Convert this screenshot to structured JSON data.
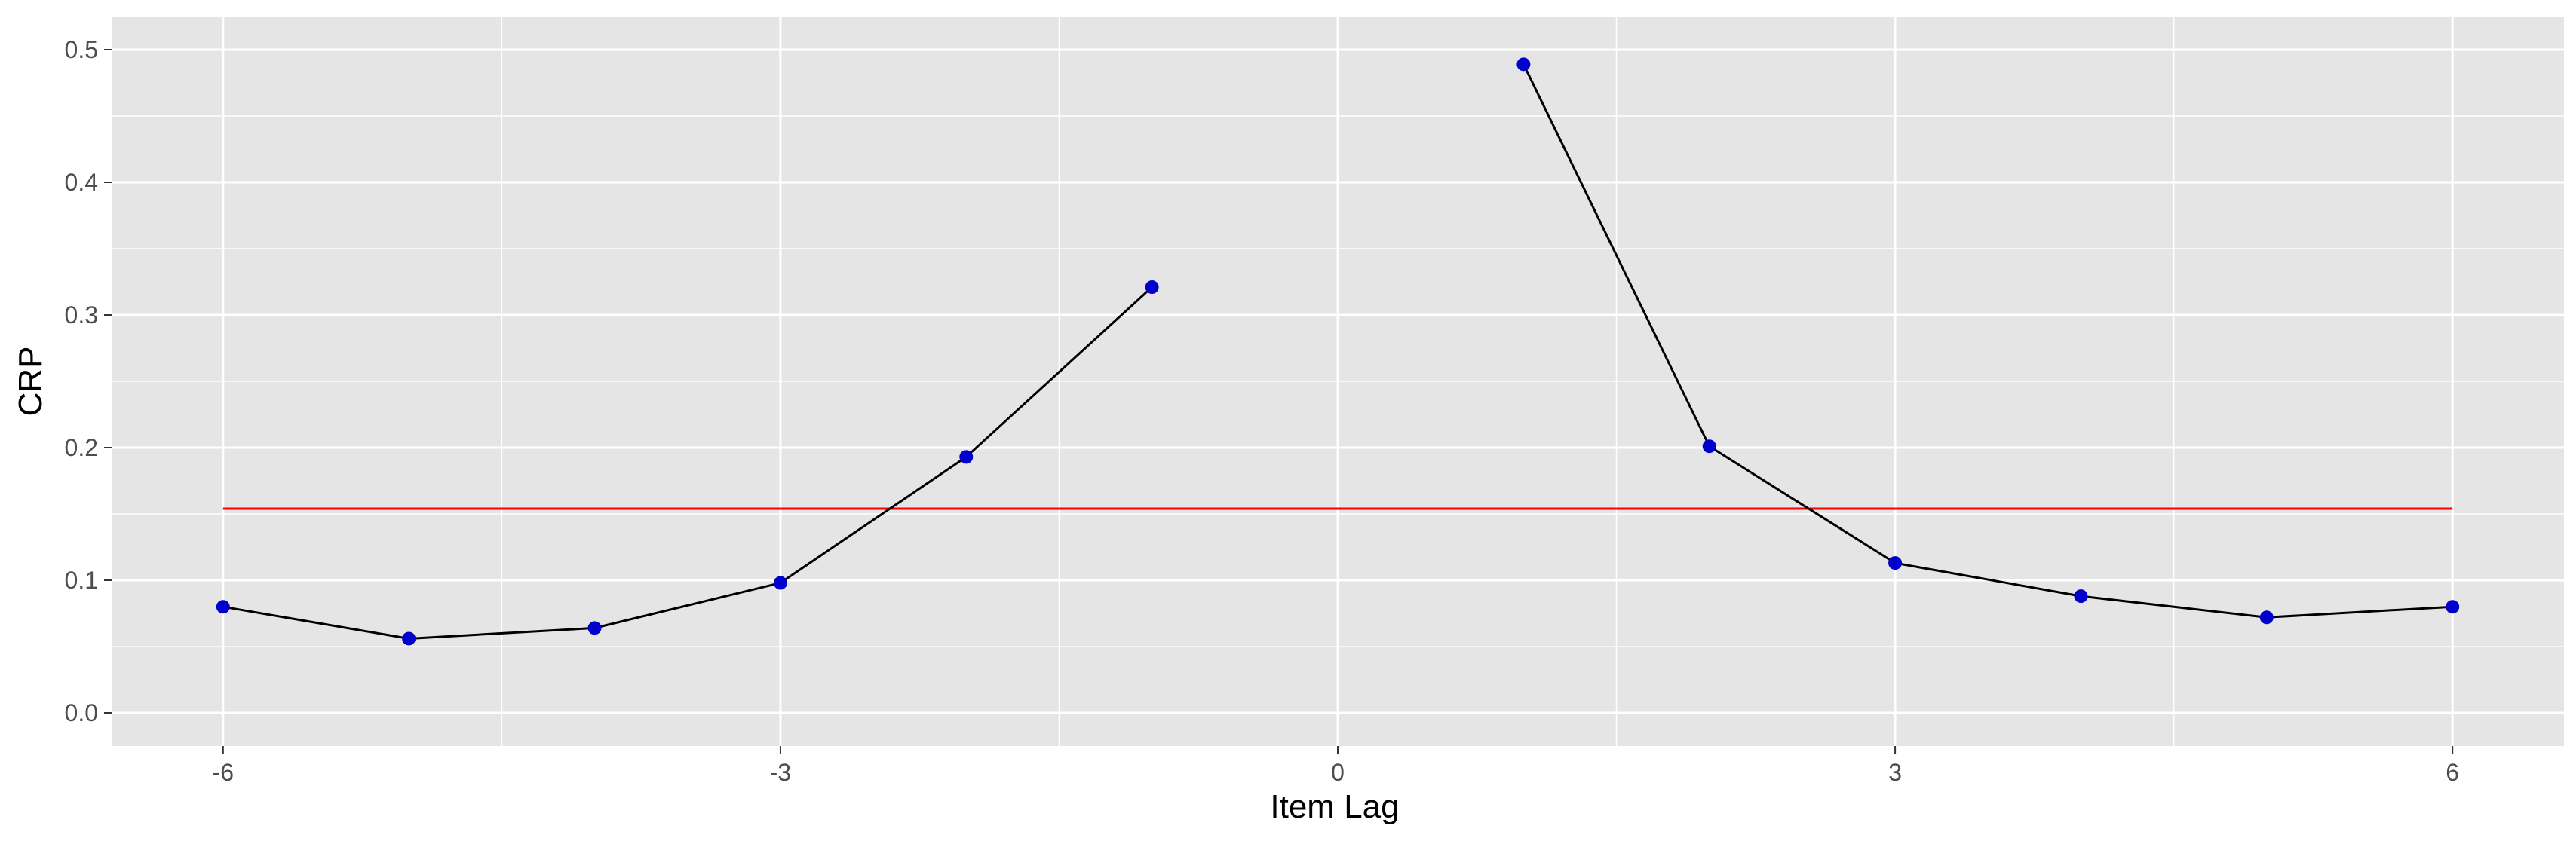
{
  "chart_data": {
    "type": "line",
    "xlabel": "Item Lag",
    "ylabel": "CRP",
    "xlim": [
      -6.6,
      6.6
    ],
    "ylim": [
      -0.025,
      0.525
    ],
    "x_ticks": [
      -6,
      -3,
      0,
      3,
      6
    ],
    "x_tick_labels": [
      "-6",
      "-3",
      "0",
      "3",
      "6"
    ],
    "y_ticks": [
      0.0,
      0.1,
      0.2,
      0.3,
      0.4,
      0.5
    ],
    "y_tick_labels": [
      "0.0",
      "0.1",
      "0.2",
      "0.3",
      "0.4",
      "0.5"
    ],
    "grid": true,
    "series": [
      {
        "segment": "negative-lags",
        "x": [
          -6,
          -5,
          -4,
          -3,
          -2,
          -1
        ],
        "y": [
          0.08,
          0.056,
          0.064,
          0.098,
          0.193,
          0.321
        ]
      },
      {
        "segment": "positive-lags",
        "x": [
          1,
          2,
          3,
          4,
          5,
          6
        ],
        "y": [
          0.489,
          0.201,
          0.113,
          0.088,
          0.072,
          0.08
        ]
      }
    ],
    "reference_line": {
      "y": 0.154,
      "x_range": [
        -6,
        6
      ]
    },
    "colors": {
      "panel_background": "#e5e5e5",
      "grid": "#ffffff",
      "line": "#000000",
      "points": "#0000cd",
      "reference_line": "#ff0000",
      "tick_labels": "#4d4d4d"
    }
  }
}
